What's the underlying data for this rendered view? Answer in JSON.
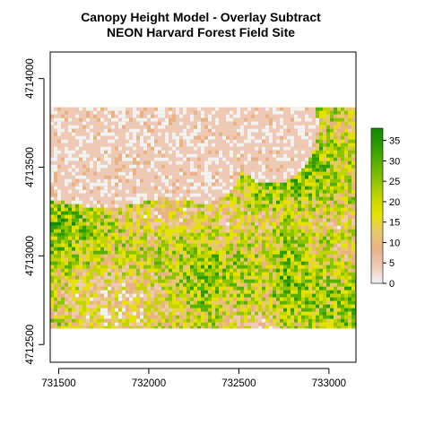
{
  "chart_data": {
    "type": "heatmap",
    "title": "Canopy Height Model - Overlay Subtract",
    "subtitle": "NEON Harvard Forest Field Site",
    "xlabel": "",
    "ylabel": "",
    "x_ticks": [
      "731500",
      "732000",
      "732500",
      "733000"
    ],
    "x_tick_values": [
      731500,
      732000,
      732500,
      733000
    ],
    "y_ticks": [
      "4712500",
      "4713000",
      "4713500",
      "4714000"
    ],
    "y_tick_values": [
      4712500,
      4713000,
      4713500,
      4714000
    ],
    "xlim": [
      731453,
      733150
    ],
    "ylim": [
      4712400,
      4714150
    ],
    "raster_extent": {
      "xmin": 731453,
      "xmax": 733150,
      "ymin": 4712590,
      "ymax": 4713838
    },
    "legend": {
      "placement": "right",
      "ticks": [
        "0",
        "5",
        "10",
        "15",
        "20",
        "25",
        "30",
        "35"
      ],
      "tick_values": [
        0,
        5,
        10,
        15,
        20,
        25,
        30,
        35
      ],
      "range": [
        0,
        38
      ],
      "colors": [
        "#f2f2f2",
        "#eec9b7",
        "#e9b186",
        "#e6c96a",
        "#e6e200",
        "#c2d400",
        "#8cc200",
        "#57b000",
        "#2e9b00",
        "#138a00"
      ]
    },
    "grid": false
  },
  "colors": {
    "background": "#ffffff",
    "no_data_band": "#f2f2f2",
    "dominant_canopy": "#d9d92a"
  }
}
